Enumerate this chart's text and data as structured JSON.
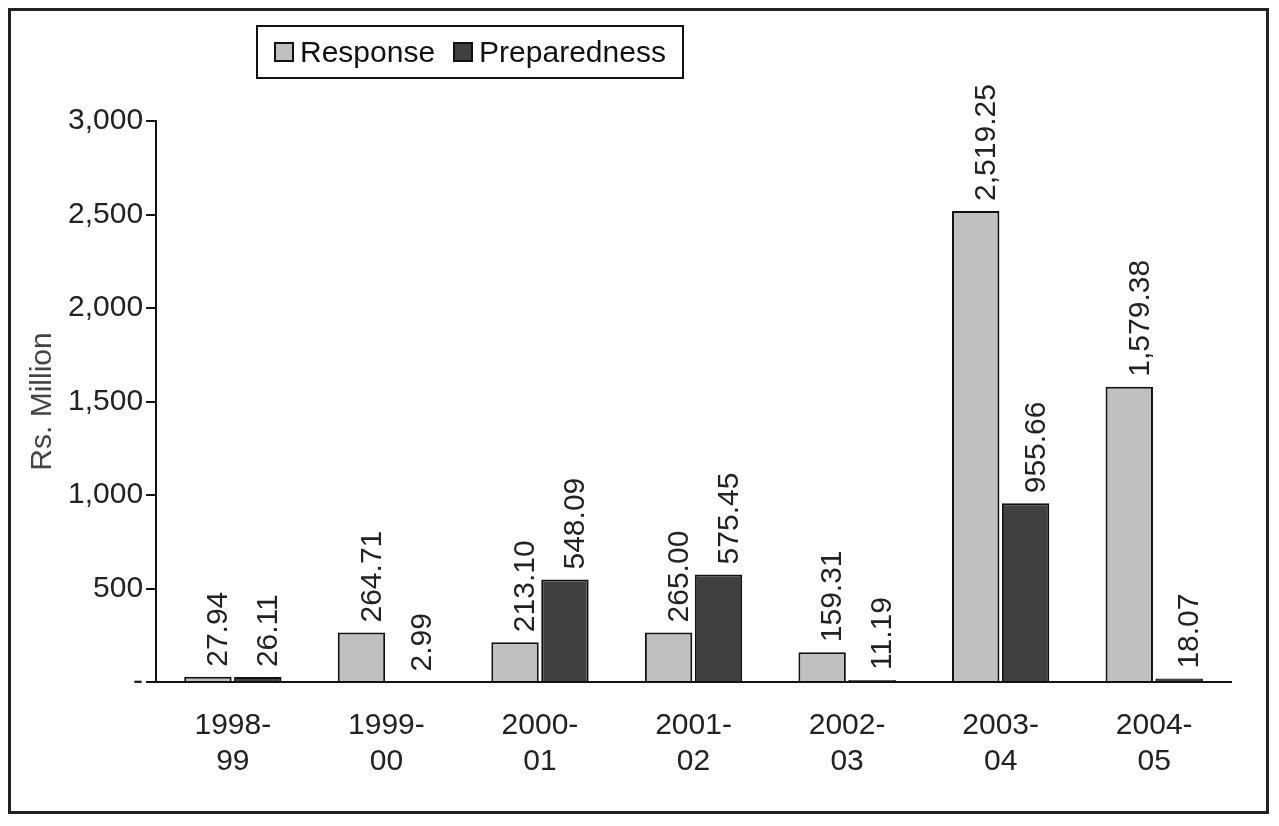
{
  "chart_data": {
    "type": "bar",
    "ylabel": "Rs. Million",
    "categories": [
      "1998-99",
      "1999-00",
      "2000-01",
      "2001-02",
      "2002-03",
      "2003-04",
      "2004-05"
    ],
    "series": [
      {
        "name": "Response",
        "color": "#c0c0c0",
        "values": [
          27.94,
          264.71,
          213.1,
          265.0,
          159.31,
          2519.25,
          1579.38
        ],
        "value_labels": [
          "27.94",
          "264.71",
          "213.10",
          "265.00",
          "159.31",
          "2,519.25",
          "1,579.38"
        ]
      },
      {
        "name": "Preparedness",
        "color": "#404040",
        "values": [
          26.11,
          2.99,
          548.09,
          575.45,
          11.19,
          955.66,
          18.07
        ],
        "value_labels": [
          "26.11",
          "2.99",
          "548.09",
          "575.45",
          "11.19",
          "955.66",
          "18.07"
        ]
      }
    ],
    "ylim": [
      0,
      3000
    ],
    "yticks": [
      {
        "value": 0,
        "label": "-"
      },
      {
        "value": 500,
        "label": "500"
      },
      {
        "value": 1000,
        "label": "1,000"
      },
      {
        "value": 1500,
        "label": "1,500"
      },
      {
        "value": 2000,
        "label": "2,000"
      },
      {
        "value": 2500,
        "label": "2,500"
      },
      {
        "value": 3000,
        "label": "3,000"
      }
    ],
    "grid": false,
    "legend": "top left"
  }
}
